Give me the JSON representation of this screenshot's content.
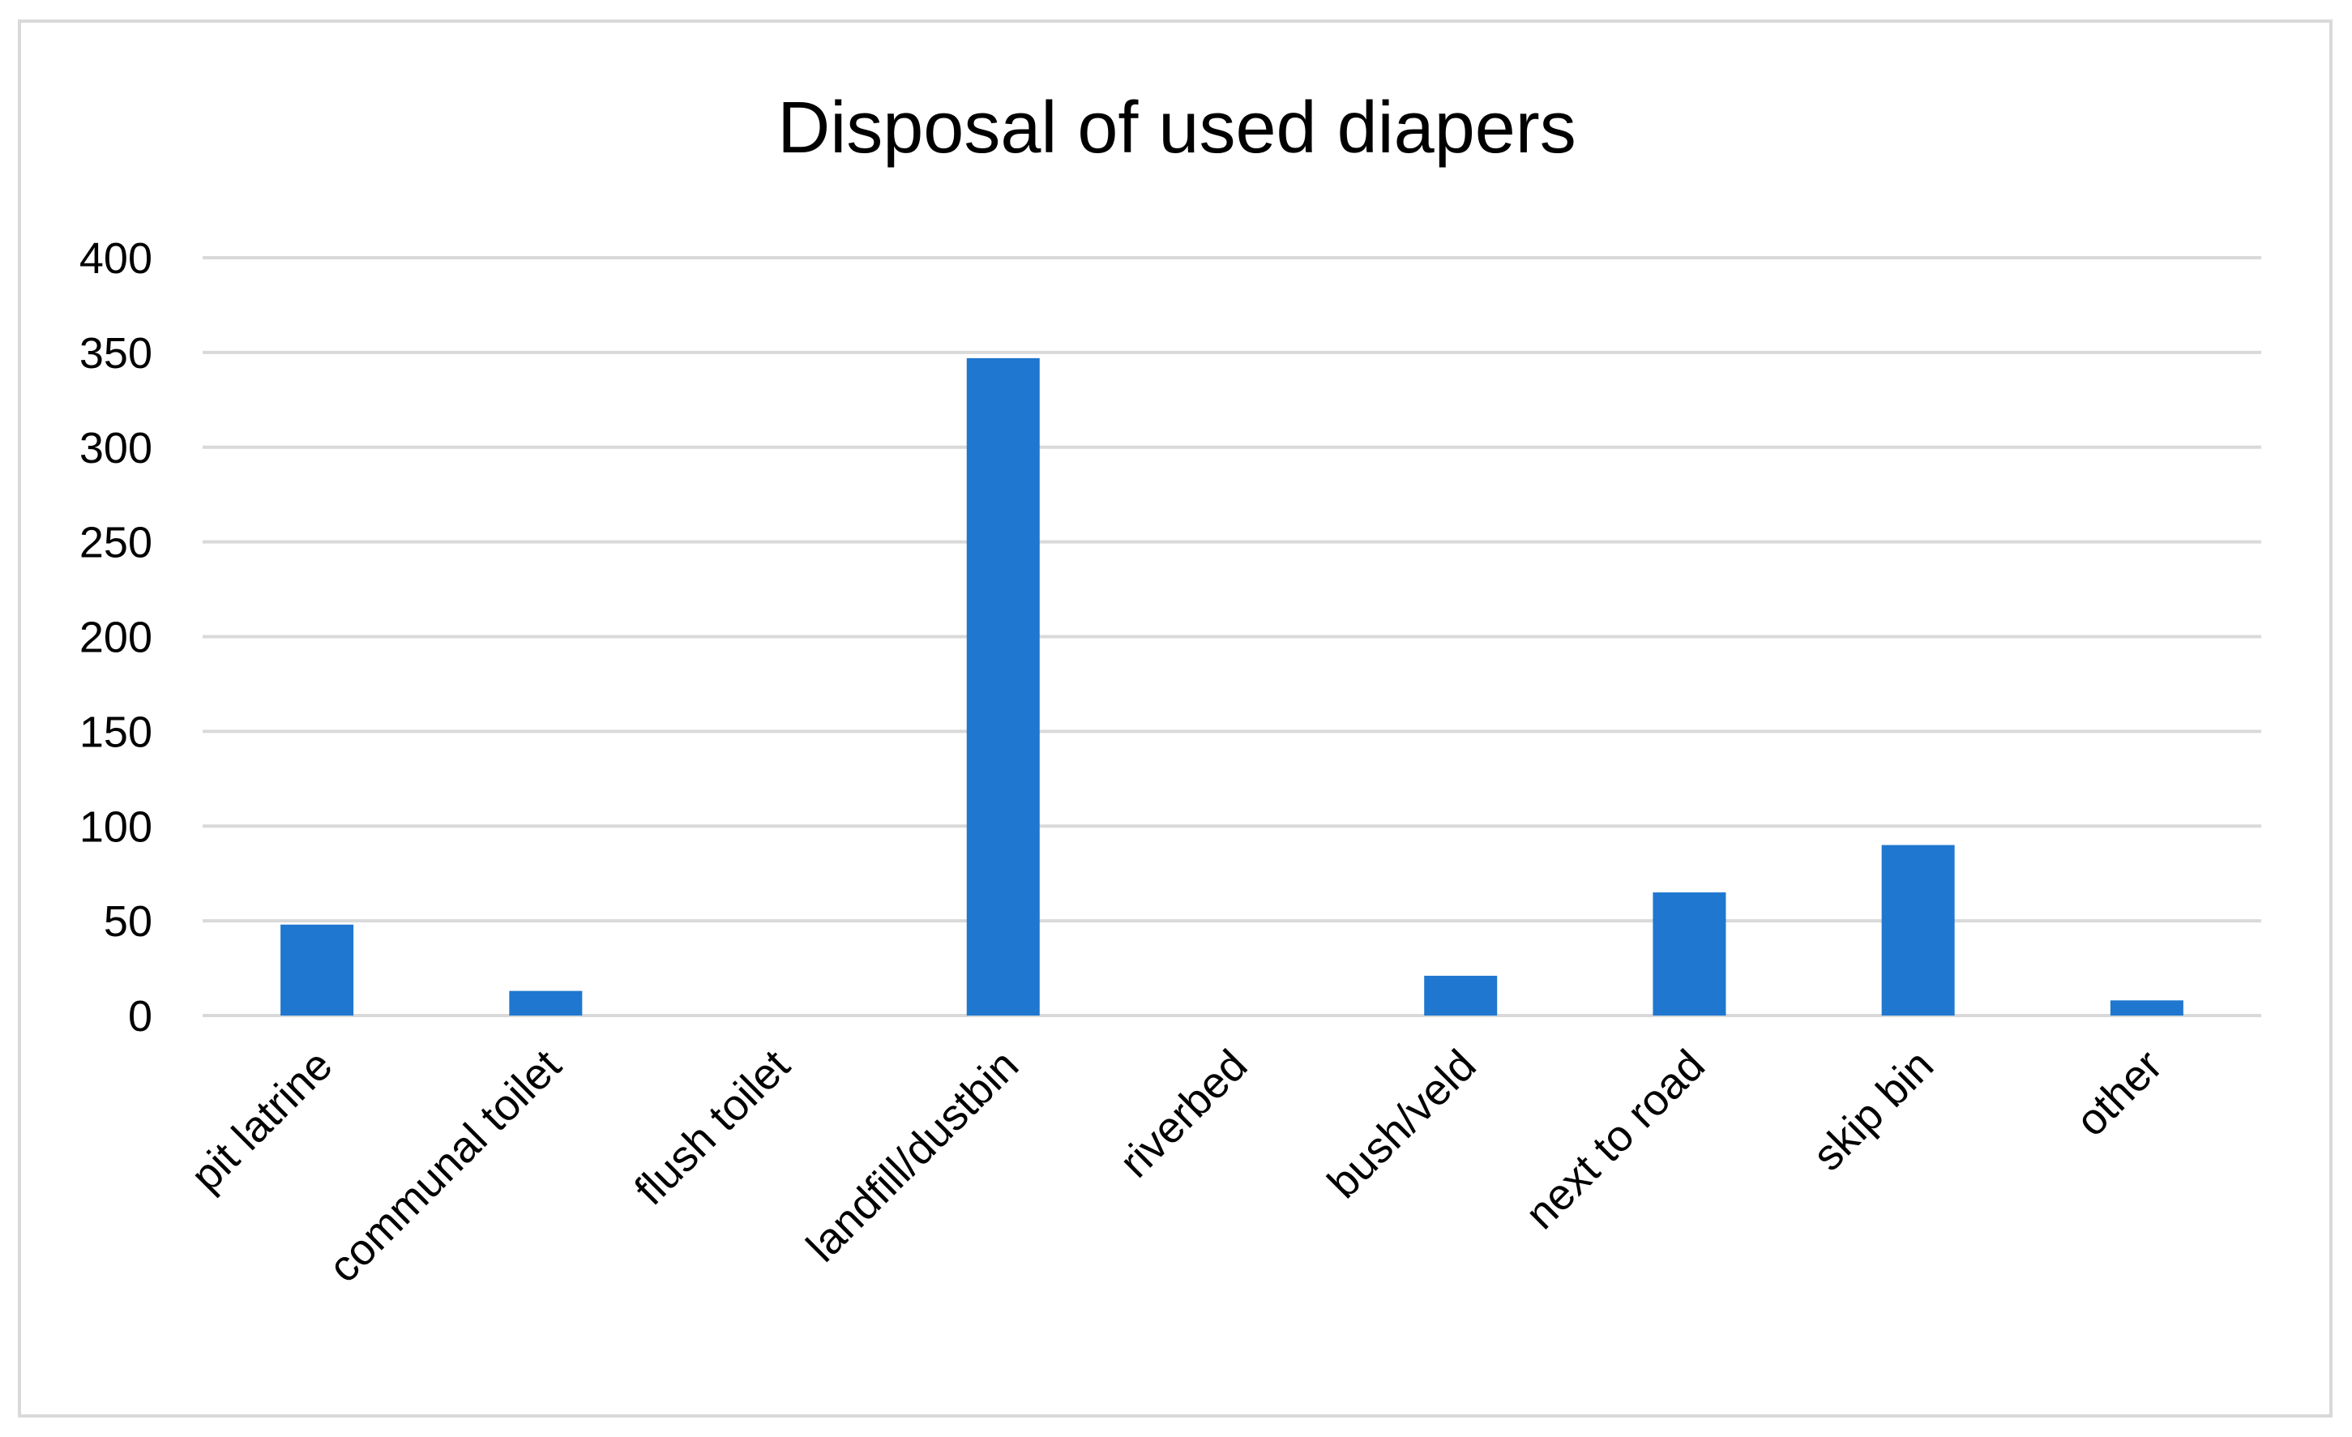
{
  "chart_data": {
    "type": "bar",
    "title": "Disposal of used diapers",
    "xlabel": "",
    "ylabel": "",
    "categories": [
      "pit latrine",
      "communal toilet",
      "flush toilet",
      "landfill/dustbin",
      "riverbed",
      "bush/veld",
      "next to road",
      "skip bin",
      "other"
    ],
    "values": [
      48,
      13,
      0,
      347,
      0,
      21,
      65,
      90,
      8
    ],
    "ylim": [
      0,
      400
    ],
    "yticks": [
      "0",
      "50",
      "100",
      "150",
      "200",
      "250",
      "300",
      "350",
      "400"
    ],
    "grid": true,
    "legend": "none",
    "bar_color": "#1f77cf",
    "grid_color": "#d9d9d9",
    "border_color": "#d9d9d9"
  }
}
